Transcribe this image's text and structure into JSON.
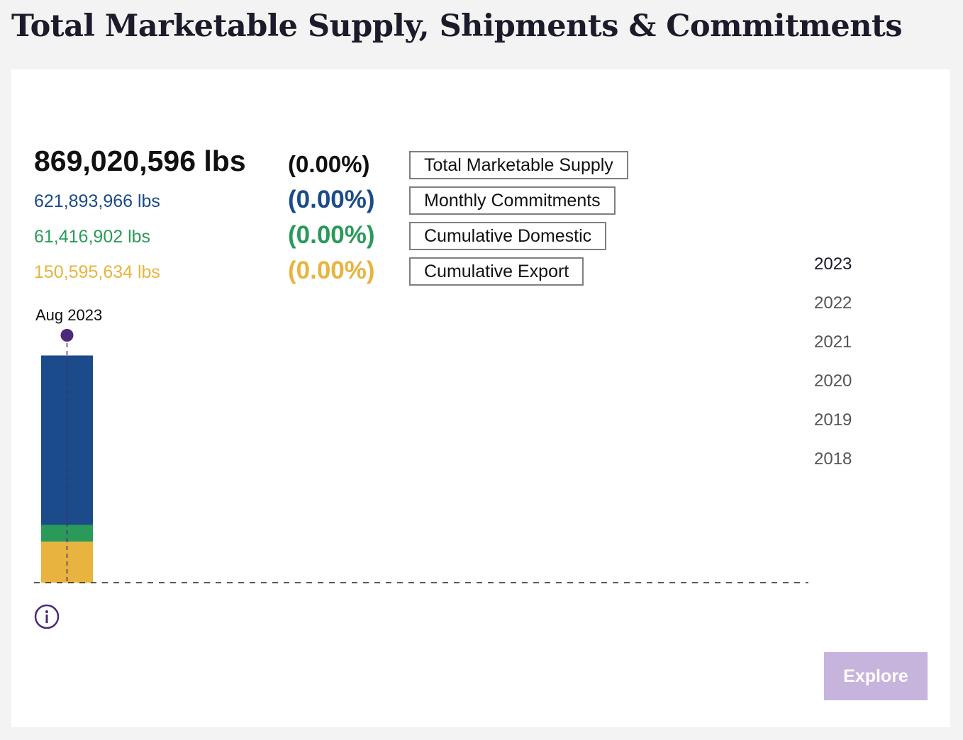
{
  "page": {
    "title": "Total Marketable Supply, Shipments & Commitments"
  },
  "metrics": [
    {
      "value": "869,020,596 lbs",
      "pct": "(0.00%)",
      "toggle": "Total Marketable Supply",
      "color": "#111111"
    },
    {
      "value": "621,893,966 lbs",
      "pct": "(0.00%)",
      "toggle": "Monthly Commitments",
      "color": "#1b4b8a"
    },
    {
      "value": "61,416,902 lbs",
      "pct": "(0.00%)",
      "toggle": "Cumulative Domestic",
      "color": "#2a9a5a"
    },
    {
      "value": "150,595,634 lbs",
      "pct": "(0.00%)",
      "toggle": "Cumulative Export",
      "color": "#e8b43f"
    }
  ],
  "years": [
    "2023",
    "2022",
    "2021",
    "2020",
    "2019",
    "2018"
  ],
  "selected_year": "2023",
  "chart_data": {
    "type": "bar",
    "stacked": true,
    "categories": [
      "Aug 2023"
    ],
    "series": [
      {
        "name": "Cumulative Export",
        "values": [
          150595634
        ],
        "color": "#e8b43f"
      },
      {
        "name": "Cumulative Domestic",
        "values": [
          61416902
        ],
        "color": "#2a9a5a"
      },
      {
        "name": "Monthly Commitments",
        "values": [
          621893966
        ],
        "color": "#1b4b8a"
      }
    ],
    "ylim": [
      0,
      869020596
    ],
    "marker_color": "#4b2a7a"
  },
  "explore": {
    "label": "Explore"
  }
}
